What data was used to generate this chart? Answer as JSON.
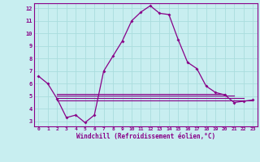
{
  "xlabel": "Windchill (Refroidissement éolien,°C)",
  "bg_color": "#c8eef0",
  "line_color": "#880088",
  "grid_color": "#aadddd",
  "axis_bg": "#c8eef0",
  "xlim": [
    -0.5,
    23.5
  ],
  "ylim": [
    2.6,
    12.4
  ],
  "xticks": [
    0,
    1,
    2,
    3,
    4,
    5,
    6,
    7,
    8,
    9,
    10,
    11,
    12,
    13,
    14,
    15,
    16,
    17,
    18,
    19,
    20,
    21,
    22,
    23
  ],
  "yticks": [
    3,
    4,
    5,
    6,
    7,
    8,
    9,
    10,
    11,
    12
  ],
  "main_line": {
    "x": [
      0,
      1,
      2,
      3,
      4,
      5,
      6,
      7,
      8,
      9,
      10,
      11,
      12,
      13,
      14,
      15,
      16,
      17,
      18,
      19,
      20,
      21,
      22,
      23
    ],
    "y": [
      6.6,
      6.0,
      4.8,
      3.3,
      3.5,
      2.9,
      3.5,
      7.0,
      8.2,
      9.4,
      11.0,
      11.7,
      12.2,
      11.6,
      11.5,
      9.5,
      7.7,
      7.2,
      5.8,
      5.3,
      5.1,
      4.5,
      4.6,
      4.7
    ]
  },
  "flat_lines": [
    {
      "x": [
        2,
        23
      ],
      "y": [
        4.65,
        4.65
      ]
    },
    {
      "x": [
        2,
        22
      ],
      "y": [
        4.85,
        4.85
      ]
    },
    {
      "x": [
        2,
        21
      ],
      "y": [
        5.05,
        5.05
      ]
    },
    {
      "x": [
        2,
        20
      ],
      "y": [
        5.2,
        5.2
      ]
    }
  ]
}
